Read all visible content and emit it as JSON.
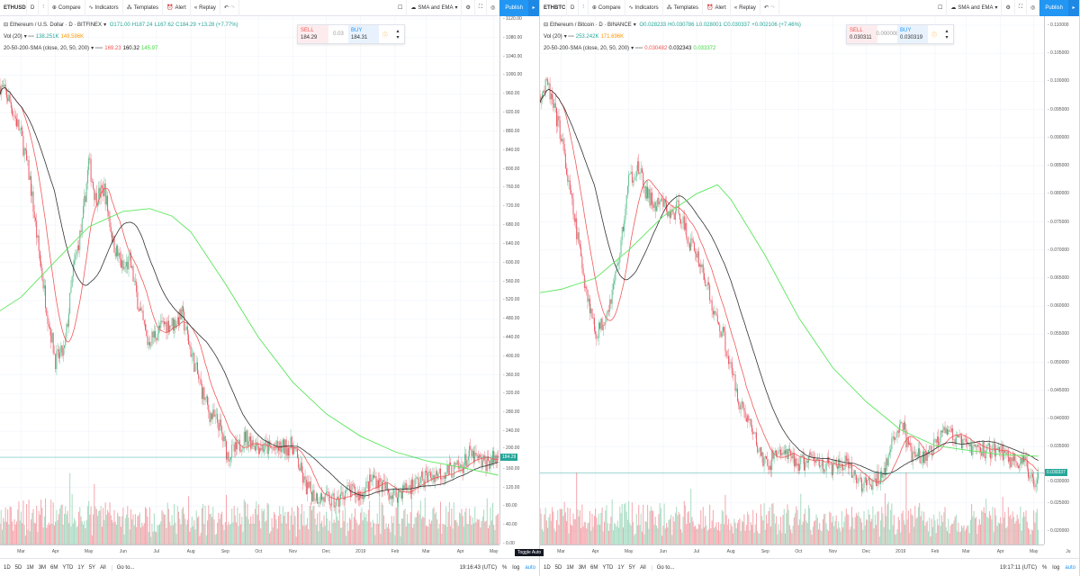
{
  "colors": {
    "up": "#53b987",
    "down": "#eb4d5c",
    "sma20": "#f05a5a",
    "sma50": "#333333",
    "sma200": "#5ce65c",
    "accent": "#2196f3"
  },
  "panes": [
    {
      "symbol": "ETHUSD",
      "interval": "D",
      "toolbar": {
        "compare": "Compare",
        "indicators": "Indicators",
        "templates": "Templates",
        "alert": "Alert",
        "replay": "Replay",
        "layout": "SMA and EMA",
        "publish": "Publish"
      },
      "legend": {
        "title": "Ethereum / U.S. Dollar · D · BITFINEX",
        "o": "O171.00",
        "h": "H187.24",
        "l": "L167.62",
        "c": "C184.29",
        "chg": "+13.28 (+7.77%)",
        "vol_label": "Vol (20)",
        "vol1": "138.251K",
        "vol2": "149.586K",
        "sma_label": "20-50-200-SMA (close, 20, 50, 200)",
        "sma20": "169.23",
        "sma50": "160.32",
        "sma200": "145.97"
      },
      "trade": {
        "sell_label": "SELL",
        "sell": "184.29",
        "spread": "0.03",
        "buy_label": "BUY",
        "buy": "184.31"
      },
      "last_price": "184.29",
      "y_ticks": [
        "1120.00",
        "1080.00",
        "1040.00",
        "1000.00",
        "960.00",
        "920.00",
        "880.00",
        "840.00",
        "800.00",
        "760.00",
        "720.00",
        "680.00",
        "640.00",
        "600.00",
        "560.00",
        "520.00",
        "480.00",
        "440.00",
        "400.00",
        "360.00",
        "320.00",
        "280.00",
        "240.00",
        "200.00",
        "160.00",
        "120.00",
        "80.00",
        "40.00",
        "0.00"
      ],
      "x_ticks": [
        "Mar",
        "Apr",
        "May",
        "Jun",
        "Jul",
        "Aug",
        "Sep",
        "Oct",
        "Nov",
        "Dec",
        "2019",
        "Feb",
        "Mar",
        "Apr",
        "May"
      ],
      "ranges": [
        "1D",
        "5D",
        "1M",
        "3M",
        "6M",
        "YTD",
        "1Y",
        "5Y",
        "All"
      ],
      "goto": "Go to...",
      "time": "19:16:43 (UTC)",
      "pct": "%",
      "log": "log",
      "auto": "auto",
      "tooltip": "Toggle Auto"
    },
    {
      "symbol": "ETHBTC",
      "interval": "D",
      "toolbar": {
        "compare": "Compare",
        "indicators": "Indicators",
        "templates": "Templates",
        "alert": "Alert",
        "replay": "Replay",
        "layout": "SMA and EMA",
        "publish": "Publish"
      },
      "legend": {
        "title": "Ethereum / Bitcoin · D · BINANCE",
        "o": "O0.028233",
        "h": "H0.030786",
        "l": "L0.028001",
        "c": "C0.030337",
        "chg": "+0.002106 (+7.46%)",
        "vol_label": "Vol (20)",
        "vol1": "253.242K",
        "vol2": "171.696K",
        "sma_label": "20-50-200-SMA (close, 20, 50, 200)",
        "sma20": "0.030482",
        "sma50": "0.032343",
        "sma200": "0.033372"
      },
      "trade": {
        "sell_label": "SELL",
        "sell": "0.030311",
        "spread": "0.000008",
        "buy_label": "BUY",
        "buy": "0.030319"
      },
      "last_price": "0.030337",
      "y_ticks": [
        "0.110000",
        "0.105000",
        "0.100000",
        "0.095000",
        "0.090000",
        "0.085000",
        "0.080000",
        "0.075000",
        "0.070000",
        "0.065000",
        "0.060000",
        "0.055000",
        "0.050000",
        "0.045000",
        "0.040000",
        "0.035000",
        "0.030000",
        "0.025000",
        "0.020000"
      ],
      "x_ticks": [
        "Mar",
        "Apr",
        "May",
        "Jun",
        "Jul",
        "Aug",
        "Sep",
        "Oct",
        "Nov",
        "Dec",
        "2019",
        "Feb",
        "Mar",
        "Apr",
        "May",
        "Ju"
      ],
      "ranges": [
        "1D",
        "5D",
        "1M",
        "3M",
        "6M",
        "YTD",
        "1Y",
        "5Y",
        "All"
      ],
      "goto": "Go to...",
      "time": "19:17:11 (UTC)",
      "pct": "%",
      "log": "log",
      "auto": "auto"
    }
  ],
  "chart_data": [
    {
      "type": "candlestick",
      "symbol": "ETHUSD",
      "ylim": [
        0,
        1120
      ],
      "close": [
        [
          "2018-02-10",
          978
        ],
        [
          "2018-02-18",
          949
        ],
        [
          "2018-03-01",
          872
        ],
        [
          "2018-03-09",
          776
        ],
        [
          "2018-03-17",
          622
        ],
        [
          "2018-03-25",
          488
        ],
        [
          "2018-04-01",
          392
        ],
        [
          "2018-04-09",
          411
        ],
        [
          "2018-04-17",
          584
        ],
        [
          "2018-04-25",
          680
        ],
        [
          "2018-05-01",
          815
        ],
        [
          "2018-05-07",
          738
        ],
        [
          "2018-05-15",
          757
        ],
        [
          "2018-05-23",
          642
        ],
        [
          "2018-06-01",
          584
        ],
        [
          "2018-06-07",
          603
        ],
        [
          "2018-06-15",
          507
        ],
        [
          "2018-06-23",
          430
        ],
        [
          "2018-07-01",
          450
        ],
        [
          "2018-07-08",
          469
        ],
        [
          "2018-07-16",
          469
        ],
        [
          "2018-07-24",
          488
        ],
        [
          "2018-08-01",
          411
        ],
        [
          "2018-08-10",
          334
        ],
        [
          "2018-08-18",
          277
        ],
        [
          "2018-08-26",
          257
        ],
        [
          "2018-09-03",
          190
        ],
        [
          "2018-09-11",
          200
        ],
        [
          "2018-09-19",
          229
        ],
        [
          "2018-10-01",
          209
        ],
        [
          "2018-10-14",
          200
        ],
        [
          "2018-11-01",
          209
        ],
        [
          "2018-11-12",
          123
        ],
        [
          "2018-11-20",
          104
        ],
        [
          "2018-12-01",
          94
        ],
        [
          "2018-12-10",
          85
        ],
        [
          "2018-12-18",
          113
        ],
        [
          "2019-01-01",
          104
        ],
        [
          "2019-01-13",
          142
        ],
        [
          "2019-01-25",
          113
        ],
        [
          "2019-02-01",
          104
        ],
        [
          "2019-02-14",
          123
        ],
        [
          "2019-03-01",
          142
        ],
        [
          "2019-03-15",
          152
        ],
        [
          "2019-04-01",
          161
        ],
        [
          "2019-04-09",
          190
        ],
        [
          "2019-04-21",
          171
        ],
        [
          "2019-05-01",
          180
        ],
        [
          "2019-05-05",
          184.29
        ]
      ],
      "sma200": [
        [
          "2018-02-10",
          497
        ],
        [
          "2018-03-01",
          526
        ],
        [
          "2018-04-01",
          603
        ],
        [
          "2018-05-01",
          676
        ],
        [
          "2018-06-01",
          709
        ],
        [
          "2018-06-25",
          715
        ],
        [
          "2018-07-15",
          699
        ],
        [
          "2018-08-01",
          665
        ],
        [
          "2018-09-01",
          555
        ],
        [
          "2018-10-01",
          440
        ],
        [
          "2018-11-01",
          344
        ],
        [
          "2018-12-01",
          277
        ],
        [
          "2019-01-01",
          229
        ],
        [
          "2019-02-01",
          196
        ],
        [
          "2019-03-01",
          177
        ],
        [
          "2019-04-01",
          163
        ],
        [
          "2019-05-05",
          146
        ]
      ]
    },
    {
      "type": "candlestick",
      "symbol": "ETHBTC",
      "ylim": [
        0.02,
        0.11
      ],
      "close": [
        [
          "2018-02-10",
          0.0977
        ],
        [
          "2018-02-17",
          0.0993
        ],
        [
          "2018-02-22",
          0.0953
        ],
        [
          "2018-03-01",
          0.0905
        ],
        [
          "2018-03-07",
          0.0824
        ],
        [
          "2018-03-14",
          0.0744
        ],
        [
          "2018-03-22",
          0.0648
        ],
        [
          "2018-04-01",
          0.0552
        ],
        [
          "2018-04-07",
          0.0568
        ],
        [
          "2018-04-15",
          0.0616
        ],
        [
          "2018-04-23",
          0.0696
        ],
        [
          "2018-05-01",
          0.0824
        ],
        [
          "2018-05-09",
          0.0848
        ],
        [
          "2018-05-17",
          0.08
        ],
        [
          "2018-05-25",
          0.0776
        ],
        [
          "2018-06-01",
          0.0784
        ],
        [
          "2018-06-07",
          0.076
        ],
        [
          "2018-06-15",
          0.0776
        ],
        [
          "2018-06-23",
          0.072
        ],
        [
          "2018-07-01",
          0.0696
        ],
        [
          "2018-07-09",
          0.0648
        ],
        [
          "2018-07-17",
          0.0584
        ],
        [
          "2018-07-25",
          0.0552
        ],
        [
          "2018-08-01",
          0.0488
        ],
        [
          "2018-08-10",
          0.0424
        ],
        [
          "2018-08-18",
          0.0392
        ],
        [
          "2018-08-26",
          0.0344
        ],
        [
          "2018-09-03",
          0.0312
        ],
        [
          "2018-09-11",
          0.0344
        ],
        [
          "2018-09-19",
          0.0336
        ],
        [
          "2018-10-01",
          0.032
        ],
        [
          "2018-10-14",
          0.0328
        ],
        [
          "2018-11-01",
          0.0312
        ],
        [
          "2018-11-12",
          0.032
        ],
        [
          "2018-11-20",
          0.0296
        ],
        [
          "2018-12-01",
          0.028
        ],
        [
          "2018-12-10",
          0.0288
        ],
        [
          "2018-12-18",
          0.0312
        ],
        [
          "2019-01-01",
          0.04
        ],
        [
          "2019-01-10",
          0.0336
        ],
        [
          "2019-01-22",
          0.0328
        ],
        [
          "2019-02-01",
          0.0352
        ],
        [
          "2019-02-09",
          0.0392
        ],
        [
          "2019-02-20",
          0.036
        ],
        [
          "2019-03-01",
          0.0352
        ],
        [
          "2019-03-15",
          0.0344
        ],
        [
          "2019-04-01",
          0.0344
        ],
        [
          "2019-04-10",
          0.0328
        ],
        [
          "2019-04-22",
          0.032
        ],
        [
          "2019-05-01",
          0.0288
        ],
        [
          "2019-05-05",
          0.030337
        ]
      ],
      "sma200": [
        [
          "2018-02-10",
          0.0624
        ],
        [
          "2018-03-01",
          0.063
        ],
        [
          "2018-04-01",
          0.065
        ],
        [
          "2018-05-01",
          0.07
        ],
        [
          "2018-06-01",
          0.076
        ],
        [
          "2018-07-01",
          0.08
        ],
        [
          "2018-07-20",
          0.0816
        ],
        [
          "2018-08-01",
          0.079
        ],
        [
          "2018-09-01",
          0.069
        ],
        [
          "2018-10-01",
          0.058
        ],
        [
          "2018-11-01",
          0.049
        ],
        [
          "2018-12-01",
          0.043
        ],
        [
          "2019-01-01",
          0.038
        ],
        [
          "2019-02-01",
          0.0352
        ],
        [
          "2019-03-01",
          0.0344
        ],
        [
          "2019-04-01",
          0.0336
        ],
        [
          "2019-05-05",
          0.0333
        ]
      ]
    }
  ]
}
